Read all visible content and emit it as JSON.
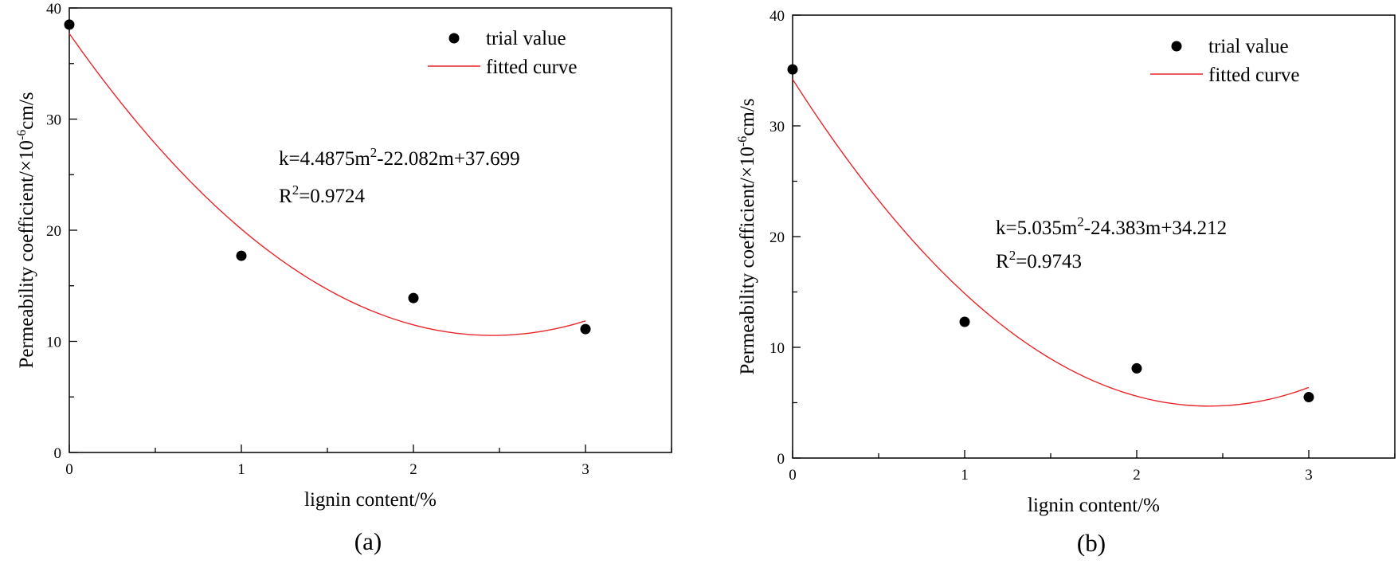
{
  "colors": {
    "curve": "#e8262a",
    "marker": "#000000",
    "axis": "#000000"
  },
  "chart_data": [
    {
      "type": "scatter",
      "caption": "(a)",
      "xlabel": "lignin content/%",
      "ylabel_main": "Permeability coefficient/×10",
      "ylabel_sup": "-6",
      "ylabel_tail": "cm/s",
      "xlim": [
        0,
        3.5
      ],
      "ylim": [
        0,
        40
      ],
      "xticks": [
        "0",
        "1",
        "2",
        "3"
      ],
      "yticks": [
        "0",
        "10",
        "20",
        "30",
        "40"
      ],
      "series": [
        {
          "name": "trial value",
          "x": [
            0,
            1,
            2,
            3
          ],
          "y": [
            38.5,
            17.7,
            13.9,
            11.1
          ]
        }
      ],
      "fit": {
        "name": "fitted curve",
        "a": 4.4875,
        "b": -22.082,
        "c": 37.699,
        "xmin": 0,
        "xmax": 3
      },
      "equation": {
        "k_prefix": "k=4.4875m",
        "k_exp": "2",
        "k_rest": "-22.082m+37.699",
        "r_prefix": "R",
        "r_exp": "2",
        "r_rest": "=0.9724"
      },
      "legend": {
        "position": "top-right",
        "marker_label": "trial value",
        "line_label": "fitted curve"
      }
    },
    {
      "type": "scatter",
      "caption": "(b)",
      "xlabel": "lignin content/%",
      "ylabel_main": "Permeability coefficient/×10",
      "ylabel_sup": "-6",
      "ylabel_tail": "cm/s",
      "xlim": [
        0,
        3.5
      ],
      "ylim": [
        0,
        40
      ],
      "xticks": [
        "0",
        "1",
        "2",
        "3"
      ],
      "yticks": [
        "0",
        "10",
        "20",
        "30",
        "40"
      ],
      "series": [
        {
          "name": "trial value",
          "x": [
            0,
            1,
            2,
            3
          ],
          "y": [
            35.1,
            12.3,
            8.1,
            5.5
          ]
        }
      ],
      "fit": {
        "name": "fitted curve",
        "a": 5.035,
        "b": -24.383,
        "c": 34.212,
        "xmin": 0,
        "xmax": 3
      },
      "equation": {
        "k_prefix": "k=5.035m",
        "k_exp": "2",
        "k_rest": "-24.383m+34.212",
        "r_prefix": "R",
        "r_exp": "2",
        "r_rest": "=0.9743"
      },
      "legend": {
        "position": "top-right",
        "marker_label": "trial value",
        "line_label": "fitted curve"
      }
    }
  ]
}
